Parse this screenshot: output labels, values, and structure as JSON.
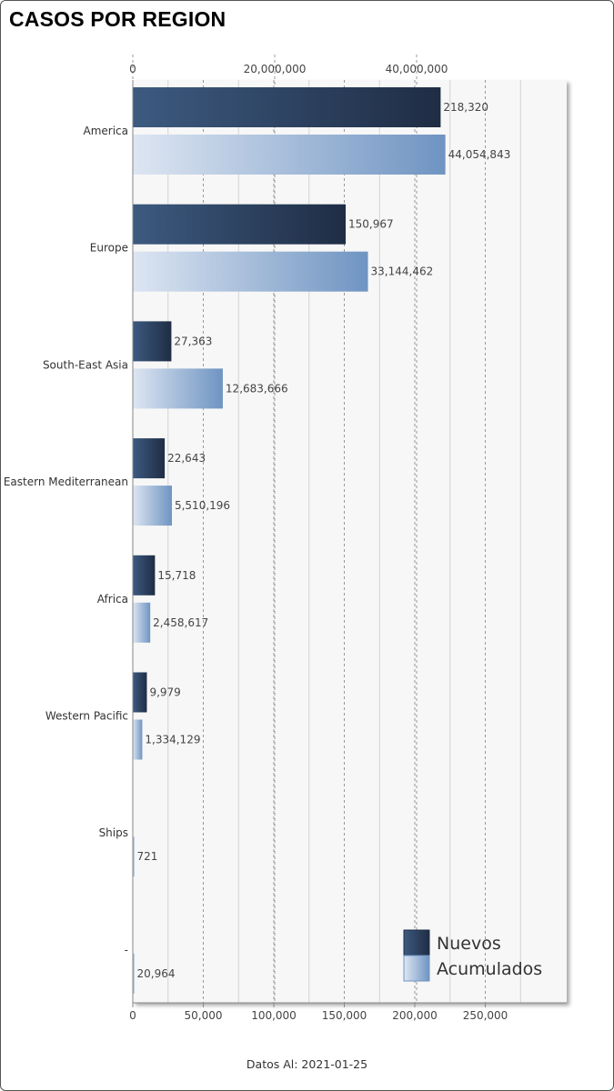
{
  "title": "CASOS POR REGION",
  "footer": "Datos Al: 2021-01-25",
  "colors": {
    "nuevos_light": "#3d5a80",
    "nuevos_dark": "#1f2d44",
    "acum_light": "#dde6f2",
    "acum_dark": "#6f94c2"
  },
  "chart_data": {
    "type": "bar",
    "orientation": "horizontal",
    "title": "CASOS POR REGION",
    "categories": [
      "America",
      "Europe",
      "South-East Asia",
      "Eastern Mediterranean",
      "Africa",
      "Western Pacific",
      "Ships",
      "-"
    ],
    "series": [
      {
        "name": "Nuevos",
        "axis": "bottom",
        "values": [
          218320,
          150967,
          27363,
          22643,
          15718,
          9979,
          null,
          null
        ],
        "value_labels": [
          "218,320",
          "150,967",
          "27,363",
          "22,643",
          "15,718",
          "9,979",
          "",
          ""
        ]
      },
      {
        "name": "Acumulados",
        "axis": "top",
        "values": [
          44054843,
          33144462,
          12683666,
          5510196,
          2458617,
          1334129,
          721,
          20964
        ],
        "value_labels": [
          "44,054,843",
          "33,144,462",
          "12,683,666",
          "5,510,196",
          "2,458,617",
          "1,334,129",
          "721",
          "20,964"
        ]
      }
    ],
    "x_bottom": {
      "range": [
        0,
        300000
      ],
      "ticks": [
        0,
        50000,
        100000,
        150000,
        200000,
        250000
      ],
      "tick_labels": [
        "0",
        "50,000",
        "100,000",
        "150,000",
        "200,000",
        "250,000"
      ]
    },
    "x_top": {
      "range": [
        0,
        60000000
      ],
      "ticks": [
        0,
        20000000,
        40000000
      ],
      "tick_labels": [
        "0",
        "20,000,000",
        "40,000,000"
      ]
    },
    "grid": true,
    "legend": {
      "position": "bottom-right",
      "entries": [
        "Nuevos",
        "Acumulados"
      ]
    }
  }
}
